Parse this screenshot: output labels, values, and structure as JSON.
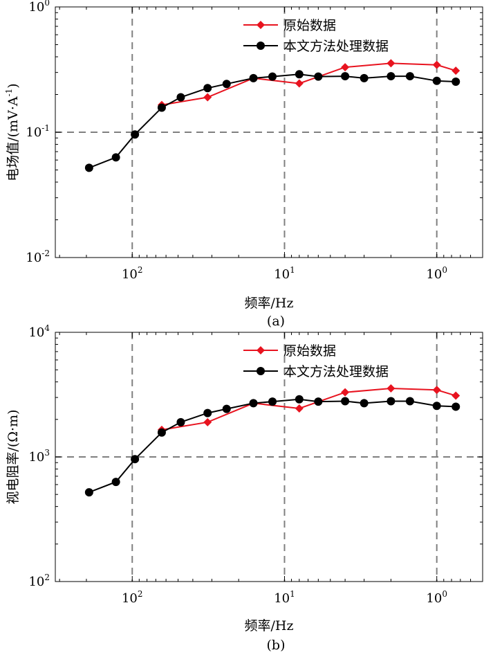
{
  "chart_data": [
    {
      "type": "line",
      "panel_label": "(a)",
      "xlabel": "频率/Hz",
      "ylabel": "电场值/(mV·A",
      "ylabel_sup": "-1",
      "ylabel_close": ")",
      "x_scale": "log",
      "x_reversed": true,
      "xlim": [
        320,
        0.5
      ],
      "y_scale": "log",
      "ylim": [
        0.01,
        1
      ],
      "x_ticks": [
        {
          "value": 100,
          "base": "10",
          "exp": "2"
        },
        {
          "value": 10,
          "base": "10",
          "exp": "1"
        },
        {
          "value": 1,
          "base": "10",
          "exp": "0"
        }
      ],
      "y_ticks": [
        {
          "value": 1,
          "base": "10",
          "exp": "0"
        },
        {
          "value": 0.1,
          "base": "10",
          "exp": "-1"
        },
        {
          "value": 0.01,
          "base": "10",
          "exp": "-2"
        }
      ],
      "grid": "dashed at major decades",
      "legend_position": "top-center",
      "series": [
        {
          "name": "原始数据",
          "color": "#e8131f",
          "marker": "diamond",
          "x": [
            64,
            32,
            16,
            8,
            4,
            2,
            1,
            0.75
          ],
          "y": [
            0.165,
            0.19,
            0.27,
            0.245,
            0.33,
            0.355,
            0.345,
            0.31
          ]
        },
        {
          "name": "本文方法处理数据",
          "color": "#000000",
          "marker": "circle",
          "x": [
            192,
            128,
            96,
            64,
            48,
            32,
            24,
            16,
            12,
            8,
            6,
            4,
            3,
            2,
            1.5,
            1,
            0.75
          ],
          "y": [
            0.052,
            0.063,
            0.096,
            0.157,
            0.19,
            0.225,
            0.243,
            0.27,
            0.278,
            0.29,
            0.278,
            0.28,
            0.27,
            0.28,
            0.28,
            0.257,
            0.253
          ]
        }
      ]
    },
    {
      "type": "line",
      "panel_label": "(b)",
      "xlabel": "频率/Hz",
      "ylabel": "视电阻率/(Ω·m)",
      "x_scale": "log",
      "x_reversed": true,
      "xlim": [
        320,
        0.5
      ],
      "y_scale": "log",
      "ylim": [
        100,
        10000
      ],
      "x_ticks": [
        {
          "value": 100,
          "base": "10",
          "exp": "2"
        },
        {
          "value": 10,
          "base": "10",
          "exp": "1"
        },
        {
          "value": 1,
          "base": "10",
          "exp": "0"
        }
      ],
      "y_ticks": [
        {
          "value": 10000,
          "base": "10",
          "exp": "4"
        },
        {
          "value": 1000,
          "base": "10",
          "exp": "3"
        },
        {
          "value": 100,
          "base": "10",
          "exp": "2"
        }
      ],
      "grid": "dashed at major decades",
      "legend_position": "top-center",
      "series": [
        {
          "name": "原始数据",
          "color": "#e8131f",
          "marker": "diamond",
          "x": [
            64,
            32,
            16,
            8,
            4,
            2,
            1,
            0.75
          ],
          "y": [
            1650,
            1900,
            2700,
            2450,
            3300,
            3550,
            3450,
            3100
          ]
        },
        {
          "name": "本文方法处理数据",
          "color": "#000000",
          "marker": "circle",
          "x": [
            192,
            128,
            96,
            64,
            48,
            32,
            24,
            16,
            12,
            8,
            6,
            4,
            3,
            2,
            1.5,
            1,
            0.75
          ],
          "y": [
            520,
            630,
            960,
            1570,
            1900,
            2250,
            2430,
            2700,
            2780,
            2900,
            2780,
            2800,
            2700,
            2800,
            2800,
            2570,
            2530
          ]
        }
      ]
    }
  ]
}
